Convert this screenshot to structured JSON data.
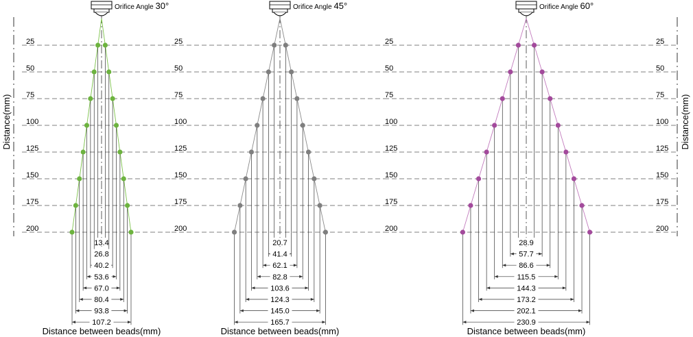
{
  "y_axis_title": "Distance(mm)",
  "x_axis_title": "Distance between beads(mm)",
  "orifice_label": "Orifice Angle",
  "distances": [
    25,
    50,
    75,
    100,
    125,
    150,
    175,
    200
  ],
  "panels": [
    {
      "angle": "30°",
      "color": "#6db33f",
      "line_color": "#7cc24a",
      "widths": [
        "13.4",
        "26.8",
        "40.2",
        "53.6",
        "67.0",
        "80.4",
        "93.8",
        "107.2"
      ]
    },
    {
      "angle": "45°",
      "color": "#7f7f7f",
      "line_color": "#8a8a8a",
      "widths": [
        "20.7",
        "41.4",
        "62.1",
        "82.8",
        "103.6",
        "124.3",
        "145.0",
        "165.7"
      ]
    },
    {
      "angle": "60°",
      "color": "#a34a9c",
      "line_color": "#c27bbd",
      "widths": [
        "28.9",
        "57.7",
        "86.6",
        "115.5",
        "144.3",
        "173.2",
        "202.1",
        "230.9"
      ]
    }
  ]
}
